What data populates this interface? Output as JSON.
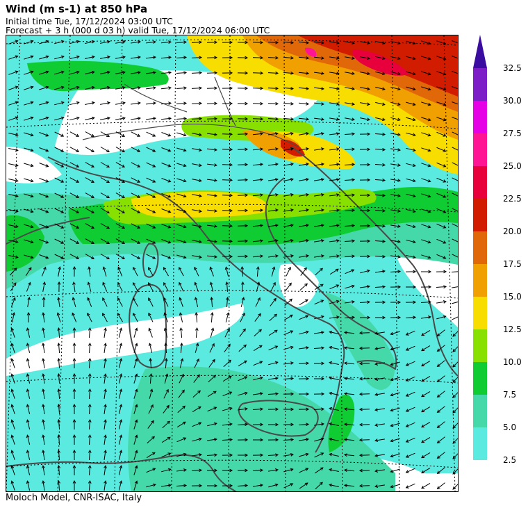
{
  "header": {
    "title": "Wind (m s-1) at 850 hPa",
    "initial_time": "Initial time  Tue, 17/12/2024  03:00 UTC",
    "forecast": "Forecast  +   3 h  (000 d 03 h)  valid Tue, 17/12/2024 06:00 UTC"
  },
  "footer": {
    "credit": "Moloch Model, CNR-ISAC, Italy"
  },
  "legend": {
    "labels": [
      "2.5",
      "5.0",
      "7.5",
      "10.0",
      "12.5",
      "15.0",
      "17.5",
      "20.0",
      "22.5",
      "25.0",
      "27.5",
      "30.0",
      "32.5"
    ],
    "colors": [
      "#5aeadf",
      "#45d8a8",
      "#10cc33",
      "#88e000",
      "#f8dd00",
      "#f0a000",
      "#e06808",
      "#d21c00",
      "#e8003c",
      "#ff1493",
      "#e600e6",
      "#7c1dc8",
      "#3a0ca0"
    ]
  },
  "map": {
    "background_color": "#ffffff",
    "coastline_color": "#4a4a4a",
    "arrow_color": "#000000",
    "graticule_style": "dotted"
  }
}
